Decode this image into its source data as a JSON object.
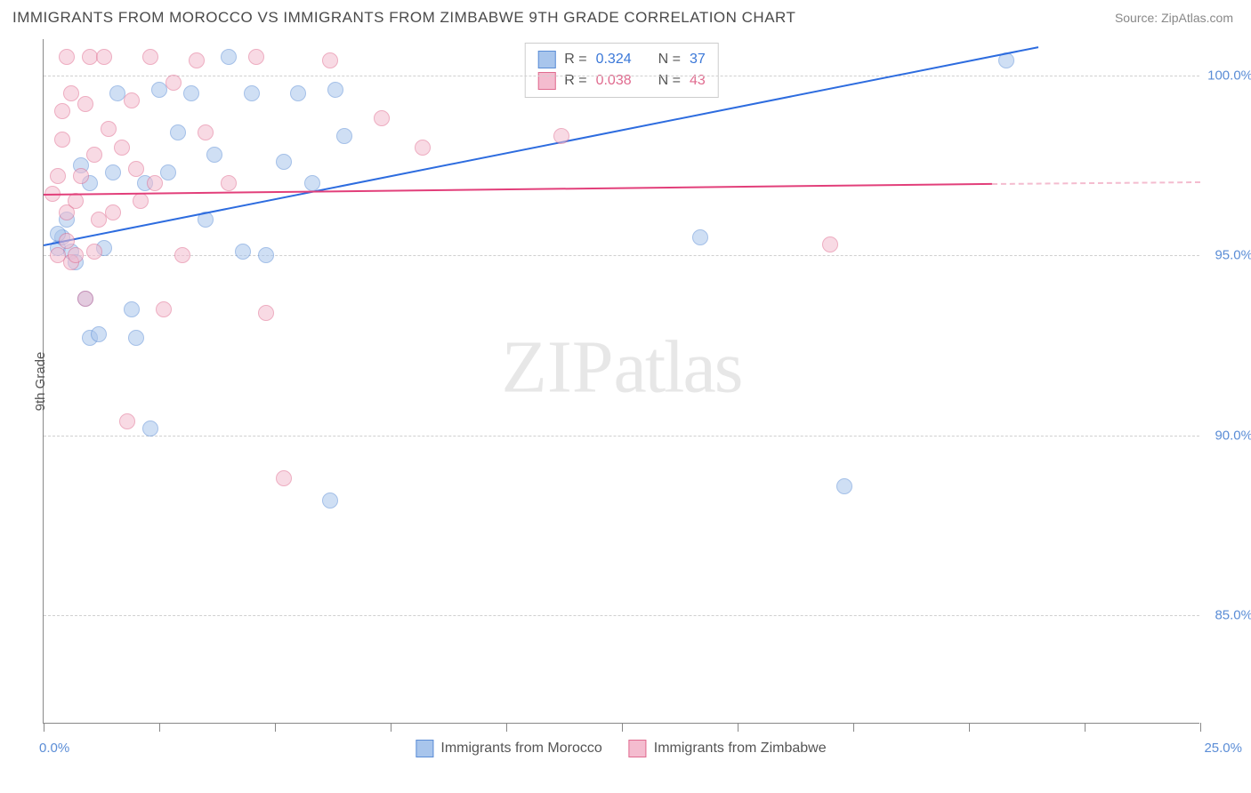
{
  "header": {
    "title": "IMMIGRANTS FROM MOROCCO VS IMMIGRANTS FROM ZIMBABWE 9TH GRADE CORRELATION CHART",
    "source": "Source: ZipAtlas.com"
  },
  "watermark": {
    "bold": "ZIP",
    "light": "atlas"
  },
  "chart": {
    "type": "scatter",
    "y_axis_title": "9th Grade",
    "xlim": [
      0,
      25
    ],
    "ylim": [
      82,
      101
    ],
    "x_start_label": "0.0%",
    "x_end_label": "25.0%",
    "y_ticks": [
      {
        "v": 85,
        "label": "85.0%"
      },
      {
        "v": 90,
        "label": "90.0%"
      },
      {
        "v": 95,
        "label": "95.0%"
      },
      {
        "v": 100,
        "label": "100.0%"
      }
    ],
    "x_tick_positions": [
      0,
      2.5,
      5,
      7.5,
      10,
      12.5,
      15,
      17.5,
      20,
      22.5,
      25
    ],
    "grid_color": "#d0d0d0",
    "background_color": "#ffffff",
    "marker_size": 18,
    "marker_opacity": 0.55,
    "series": [
      {
        "name": "Immigrants from Morocco",
        "color_fill": "#a8c5ec",
        "color_stroke": "#5b8dd6",
        "trend_color": "#2d6cdf",
        "R": "0.324",
        "N": "37",
        "trend": {
          "x1": 0,
          "y1": 95.3,
          "x2": 21.5,
          "y2": 100.8
        },
        "points": [
          [
            0.3,
            95.2
          ],
          [
            0.4,
            95.5
          ],
          [
            0.5,
            96.0
          ],
          [
            0.6,
            95.1
          ],
          [
            0.3,
            95.6
          ],
          [
            0.7,
            94.8
          ],
          [
            0.8,
            97.5
          ],
          [
            0.9,
            93.8
          ],
          [
            1.0,
            92.7
          ],
          [
            1.0,
            97.0
          ],
          [
            1.2,
            92.8
          ],
          [
            1.3,
            95.2
          ],
          [
            1.5,
            97.3
          ],
          [
            1.6,
            99.5
          ],
          [
            1.9,
            93.5
          ],
          [
            2.0,
            92.7
          ],
          [
            2.2,
            97.0
          ],
          [
            2.3,
            90.2
          ],
          [
            2.5,
            99.6
          ],
          [
            2.7,
            97.3
          ],
          [
            2.9,
            98.4
          ],
          [
            3.2,
            99.5
          ],
          [
            3.5,
            96.0
          ],
          [
            3.7,
            97.8
          ],
          [
            4.0,
            100.5
          ],
          [
            4.3,
            95.1
          ],
          [
            4.5,
            99.5
          ],
          [
            4.8,
            95.0
          ],
          [
            5.2,
            97.6
          ],
          [
            5.5,
            99.5
          ],
          [
            5.8,
            97.0
          ],
          [
            6.2,
            88.2
          ],
          [
            6.3,
            99.6
          ],
          [
            6.5,
            98.3
          ],
          [
            14.2,
            95.5
          ],
          [
            17.3,
            88.6
          ],
          [
            20.8,
            100.4
          ]
        ]
      },
      {
        "name": "Immigrants from Zimbabwe",
        "color_fill": "#f4bccf",
        "color_stroke": "#e06b8f",
        "trend_color": "#e23f7a",
        "R": "0.038",
        "N": "43",
        "trend": {
          "x1": 0,
          "y1": 96.7,
          "x2": 20.5,
          "y2": 97.0
        },
        "trend_dash": {
          "x1": 20.5,
          "y1": 97.0,
          "x2": 25,
          "y2": 97.05
        },
        "points": [
          [
            0.2,
            96.7
          ],
          [
            0.3,
            95.0
          ],
          [
            0.3,
            97.2
          ],
          [
            0.4,
            99.0
          ],
          [
            0.4,
            98.2
          ],
          [
            0.5,
            95.4
          ],
          [
            0.5,
            96.2
          ],
          [
            0.5,
            100.5
          ],
          [
            0.6,
            94.8
          ],
          [
            0.6,
            99.5
          ],
          [
            0.7,
            95.0
          ],
          [
            0.7,
            96.5
          ],
          [
            0.8,
            97.2
          ],
          [
            0.9,
            99.2
          ],
          [
            0.9,
            93.8
          ],
          [
            1.0,
            100.5
          ],
          [
            1.1,
            95.1
          ],
          [
            1.1,
            97.8
          ],
          [
            1.2,
            96.0
          ],
          [
            1.3,
            100.5
          ],
          [
            1.4,
            98.5
          ],
          [
            1.5,
            96.2
          ],
          [
            1.7,
            98.0
          ],
          [
            1.8,
            90.4
          ],
          [
            1.9,
            99.3
          ],
          [
            2.0,
            97.4
          ],
          [
            2.1,
            96.5
          ],
          [
            2.3,
            100.5
          ],
          [
            2.4,
            97.0
          ],
          [
            2.6,
            93.5
          ],
          [
            2.8,
            99.8
          ],
          [
            3.3,
            100.4
          ],
          [
            3.5,
            98.4
          ],
          [
            4.0,
            97.0
          ],
          [
            4.6,
            100.5
          ],
          [
            4.8,
            93.4
          ],
          [
            5.2,
            88.8
          ],
          [
            6.2,
            100.4
          ],
          [
            7.3,
            98.8
          ],
          [
            8.2,
            98.0
          ],
          [
            11.2,
            98.3
          ],
          [
            17.0,
            95.3
          ],
          [
            3.0,
            95.0
          ]
        ]
      }
    ],
    "legend_top": {
      "r_label": "R =",
      "n_label": "N ="
    },
    "legend_bottom_labels": [
      "Immigrants from Morocco",
      "Immigrants from Zimbabwe"
    ]
  }
}
